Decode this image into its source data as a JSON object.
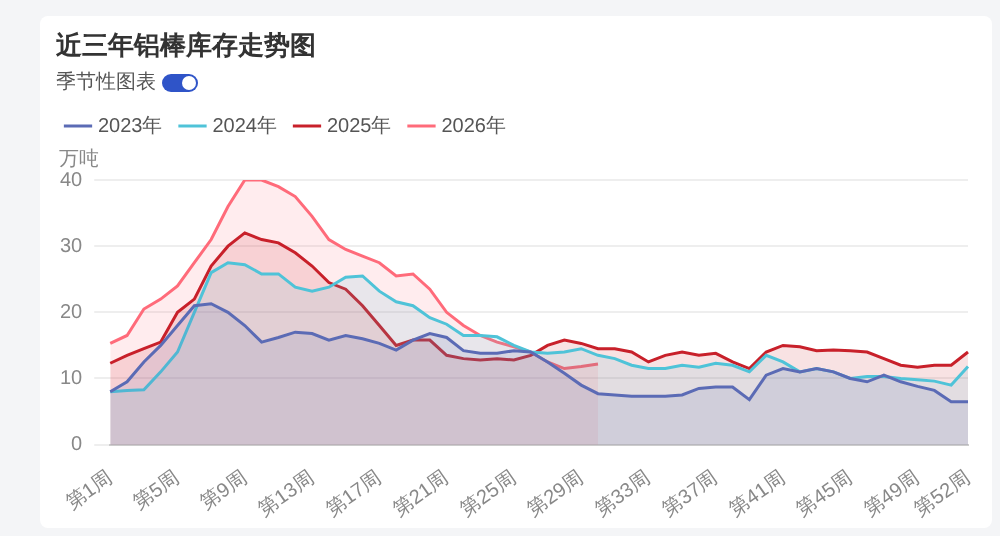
{
  "chart_data": {
    "type": "area",
    "title": "近三年铝棒库存走势图",
    "subtitle": "季节性图表",
    "ylabel": "万吨",
    "categories": [
      "第1周",
      null,
      null,
      null,
      "第5周",
      null,
      null,
      null,
      "第9周",
      null,
      null,
      null,
      "第13周",
      null,
      null,
      null,
      "第17周",
      null,
      null,
      null,
      "第21周",
      null,
      null,
      null,
      "第25周",
      null,
      null,
      null,
      "第29周",
      null,
      null,
      null,
      "第33周",
      null,
      null,
      null,
      "第37周",
      null,
      null,
      null,
      "第41周",
      null,
      null,
      null,
      "第45周",
      null,
      null,
      null,
      "第49周",
      null,
      null,
      "第52周"
    ],
    "series": [
      {
        "name": "2023年",
        "color": "#5b6bb5",
        "values": [
          8,
          9.5,
          12.5,
          15,
          18,
          21,
          21.3,
          20,
          18,
          15.5,
          16.2,
          17,
          16.8,
          15.8,
          16.5,
          16,
          15.3,
          14.3,
          15.8,
          16.8,
          16.2,
          14.2,
          13.8,
          13.8,
          14.2,
          14,
          12.5,
          10.8,
          9,
          7.7,
          7.5,
          7.3,
          7.3,
          7.3,
          7.5,
          8.5,
          8.7,
          8.7,
          6.8,
          10.5,
          11.5,
          11,
          11.5,
          11,
          10,
          9.5,
          10.5,
          9.5,
          8.8,
          8.2,
          6.5,
          6.5
        ]
      },
      {
        "name": "2024年",
        "color": "#4fc3d8",
        "values": [
          8,
          8.2,
          8.3,
          11,
          14,
          20,
          26,
          27.5,
          27.2,
          25.8,
          25.8,
          23.8,
          23.2,
          23.8,
          25.3,
          25.5,
          23.2,
          21.6,
          21,
          19.2,
          18.2,
          16.5,
          16.5,
          16.3,
          15,
          14,
          13.8,
          14,
          14.5,
          13.5,
          13,
          12,
          11.5,
          11.5,
          12,
          11.7,
          12.3,
          12,
          11,
          13.5,
          12.5,
          11,
          11.5,
          11,
          10,
          10.3,
          10.3,
          10,
          9.8,
          9.6,
          9,
          11.8
        ]
      },
      {
        "name": "2025年",
        "color": "#c8202a",
        "values": [
          12.3,
          13.5,
          14.5,
          15.5,
          20,
          22,
          27,
          30,
          32,
          31,
          30.5,
          29,
          27,
          24.5,
          23.5,
          21,
          18,
          15,
          15.8,
          15.8,
          13.5,
          13,
          12.8,
          13,
          12.8,
          13.5,
          15,
          15.8,
          15.3,
          14.5,
          14.5,
          14,
          12.5,
          13.5,
          14,
          13.5,
          13.8,
          12.5,
          11.5,
          14,
          15,
          14.8,
          14.2,
          14.3,
          14.2,
          14,
          13,
          12,
          11.7,
          12,
          12,
          14
        ]
      },
      {
        "name": "2026年",
        "color": "#ff6b7a",
        "values": [
          15.3,
          16.5,
          20.5,
          22,
          24,
          27.5,
          31,
          36,
          40,
          40,
          39,
          37.5,
          34.5,
          31,
          29.5,
          28.5,
          27.5,
          25.5,
          25.8,
          23.5,
          20,
          18,
          16.5,
          15.5,
          14.8,
          14,
          12.5,
          11.5,
          11.8,
          12.2,
          null,
          null,
          null,
          null,
          null,
          null,
          null,
          null,
          null,
          null,
          null,
          null,
          null,
          null,
          null,
          null,
          null,
          null,
          null,
          null,
          null,
          null
        ]
      }
    ],
    "ylim": [
      0,
      40
    ],
    "yticks": [
      0,
      10,
      20,
      30,
      40
    ],
    "grid": "y",
    "legend": "top left",
    "marker": "none",
    "line_style": "solid"
  }
}
